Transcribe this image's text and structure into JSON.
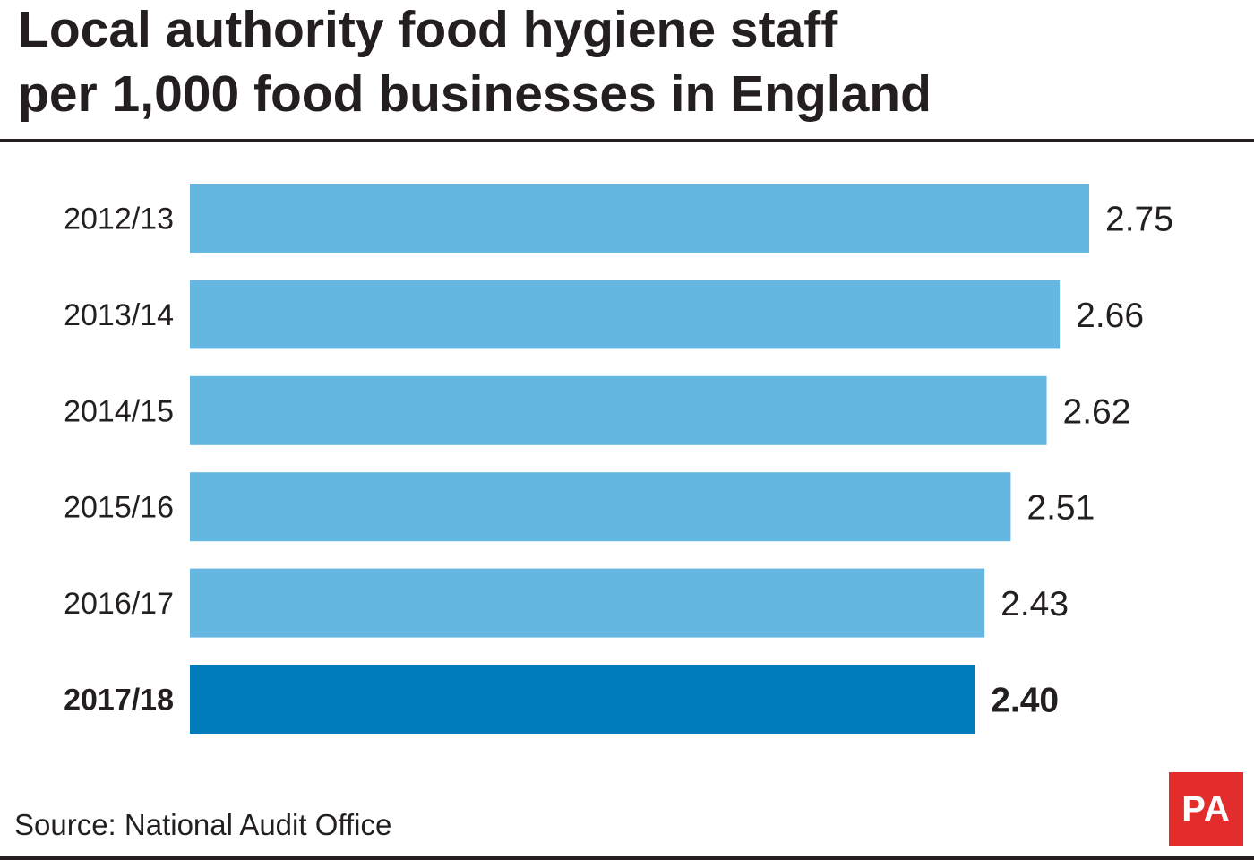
{
  "title": {
    "line1": "Local authority food hygiene staff",
    "line2": "per 1,000 food businesses in England"
  },
  "source": "Source: National Audit Office",
  "logo_text": "PA",
  "colors": {
    "bar": "#63b7e1",
    "highlight_bar": "#007cbb",
    "text": "#231f20",
    "logo": "#e32c2c"
  },
  "chart_data": {
    "type": "bar",
    "orientation": "horizontal",
    "title": "Local authority food hygiene staff per 1,000 food businesses in England",
    "categories": [
      "2012/13",
      "2013/14",
      "2014/15",
      "2015/16",
      "2016/17",
      "2017/18"
    ],
    "values": [
      2.75,
      2.66,
      2.62,
      2.51,
      2.43,
      2.4
    ],
    "value_labels": [
      "2.75",
      "2.66",
      "2.62",
      "2.51",
      "2.43",
      "2.40"
    ],
    "highlight_category": "2017/18",
    "xlabel": "",
    "ylabel": "",
    "grid": false,
    "legend": "none"
  }
}
